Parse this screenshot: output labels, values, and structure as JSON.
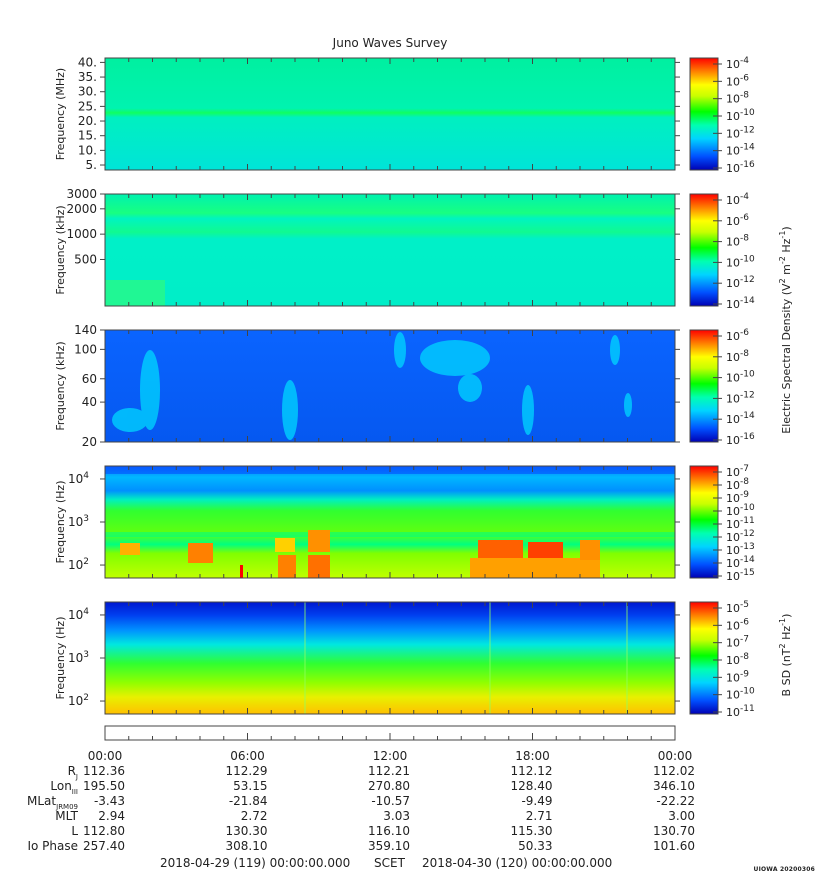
{
  "chart_data": {
    "type": "heatmap",
    "title": "Juno Waves Survey",
    "x_tick_labels": [
      "00:00",
      "06:00",
      "12:00",
      "18:00",
      "00:00"
    ],
    "panels": [
      {
        "ylabel": "Frequency (MHz)",
        "yscale": "linear",
        "ylim": [
          3.3,
          41.5
        ],
        "yticks": [
          5,
          10,
          15,
          20,
          25,
          30,
          35,
          40
        ],
        "ytick_labels": [
          "5.",
          "10.",
          "15.",
          "20.",
          "25.",
          "30.",
          "35.",
          "40."
        ],
        "colorbar_exponents": [
          "-4",
          "-6",
          "-8",
          "-10",
          "-12",
          "-14",
          "-16"
        ],
        "shared_colorbar_label": "Electric Spectral Density"
      },
      {
        "ylabel": "Frequency (kHz)",
        "yscale": "log",
        "ylim": [
          140,
          3000
        ],
        "yticks": [
          500,
          1000,
          2000,
          3000
        ],
        "ytick_labels": [
          "500",
          "1000",
          "2000",
          "3000"
        ],
        "colorbar_exponents": [
          "-4",
          "-6",
          "-8",
          "-10",
          "-12",
          "-14"
        ],
        "colorbar_label_main": "Electric Spectral Density (V",
        "colorbar_label_units": "m",
        "colorbar_label_hz": "Hz",
        "colorbar_label_sup_2": "2",
        "colorbar_label_sup_m2": "-2",
        "colorbar_label_sup_m1": "-1",
        "colorbar_label_close": ")"
      },
      {
        "ylabel": "Frequency (kHz)",
        "yscale": "log",
        "ylim": [
          20,
          140
        ],
        "yticks": [
          20,
          40,
          60,
          100,
          140
        ],
        "ytick_labels": [
          "20",
          "40",
          "60",
          "100",
          "140"
        ],
        "colorbar_exponents": [
          "-6",
          "-8",
          "-10",
          "-12",
          "-14",
          "-16"
        ]
      },
      {
        "ylabel": "Frequency (Hz)",
        "yscale": "log",
        "ylim": [
          50,
          20000
        ],
        "yticks": [
          100,
          1000,
          10000
        ],
        "ytick_base": "10",
        "ytick_exponents": [
          "2",
          "3",
          "4"
        ],
        "colorbar_exponents": [
          "-7",
          "-8",
          "-9",
          "-10",
          "-11",
          "-12",
          "-13",
          "-14",
          "-15"
        ]
      },
      {
        "ylabel": "Frequency (Hz)",
        "yscale": "log",
        "ylim": [
          50,
          20000
        ],
        "yticks": [
          100,
          1000,
          10000
        ],
        "ytick_base": "10",
        "ytick_exponents": [
          "2",
          "3",
          "4"
        ],
        "colorbar_exponents": [
          "-5",
          "-6",
          "-7",
          "-8",
          "-9",
          "-10",
          "-11"
        ],
        "colorbar_label_main": "B SD (nT",
        "colorbar_label_hz": "Hz",
        "colorbar_label_sup_2": "2",
        "colorbar_label_sup_m1": "-1",
        "colorbar_label_close": ")"
      }
    ],
    "colorbar_base": "10",
    "ephemeris": {
      "rows": [
        {
          "label": "R",
          "sub": "J",
          "values": [
            "112.36",
            "112.29",
            "112.21",
            "112.12",
            "112.02"
          ]
        },
        {
          "label": "Lon",
          "sub": "III",
          "values": [
            "195.50",
            "53.15",
            "270.80",
            "128.40",
            "346.10"
          ]
        },
        {
          "label": "MLat",
          "sub": "JRM09",
          "values": [
            "-3.43",
            "-21.84",
            "-10.57",
            "-9.49",
            "-22.22"
          ]
        },
        {
          "label": "MLT",
          "sub": "",
          "values": [
            "2.94",
            "2.72",
            "3.03",
            "2.71",
            "3.00"
          ]
        },
        {
          "label": "L",
          "sub": "",
          "values": [
            "112.80",
            "130.30",
            "116.10",
            "115.30",
            "130.70"
          ]
        },
        {
          "label": "Io Phase",
          "sub": "",
          "values": [
            "257.40",
            "308.10",
            "359.10",
            "50.33",
            "101.60"
          ]
        }
      ]
    },
    "footer": {
      "start": "2018-04-29 (119) 00:00:00.000",
      "scet": "SCET",
      "end": "2018-04-30 (120) 00:00:00.000"
    },
    "signature": "UIOWA 20200306"
  }
}
